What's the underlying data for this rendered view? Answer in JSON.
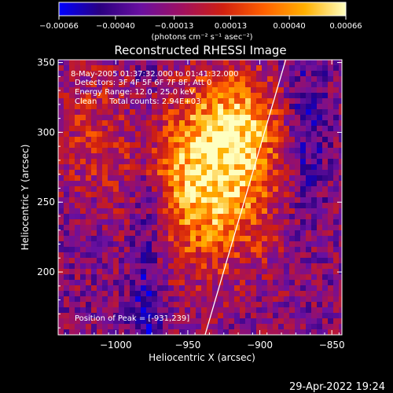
{
  "chart_data": {
    "type": "heatmap",
    "title": "Reconstructed RHESSI Image",
    "xlabel": "Heliocentric X (arcsec)",
    "ylabel": "Heliocentric Y (arcsec)",
    "xlim": [
      -1040,
      -843
    ],
    "ylim": [
      155,
      352
    ],
    "x_ticks": [
      -1000,
      -950,
      -900,
      -850
    ],
    "x_tick_labels": [
      "−1000",
      "−950",
      "−900",
      "−850"
    ],
    "y_ticks": [
      200,
      250,
      300,
      350
    ],
    "y_tick_labels": [
      "200",
      "250",
      "300",
      "350"
    ],
    "colorbar": {
      "min": -0.00066,
      "max": 0.00066,
      "ticks": [
        -0.00066,
        -0.0004,
        -0.00013,
        0.00013,
        0.0004,
        0.00066
      ],
      "tick_labels": [
        "−0.00066",
        "−0.00040",
        "−0.00013",
        "0.00013",
        "0.00040",
        "0.00066"
      ],
      "units_label": "(photons cm⁻² s⁻¹ asec⁻²)",
      "colormap": [
        "#0000ff",
        "#2a0080",
        "#6a10a0",
        "#a01060",
        "#d02010",
        "#ff6000",
        "#ffb000",
        "#ffffc0"
      ]
    },
    "annotations": [
      "8-May-2005 01:37:32.000 to 01:41:32.000",
      "Detectors: 3F 4F 5F 6F 7F 8F, Att 0",
      "Energy Range: 12.0 - 25.0 keV",
      "Clean     Total counts: 2.94E+03"
    ],
    "peak_label": "Position of Peak = [-931,239]",
    "peak": [
      -931,
      239
    ],
    "limb_line": [
      [
        -938,
        155
      ],
      [
        -882,
        352
      ]
    ],
    "grid": false
  },
  "timestamp": "29-Apr-2022 19:24"
}
